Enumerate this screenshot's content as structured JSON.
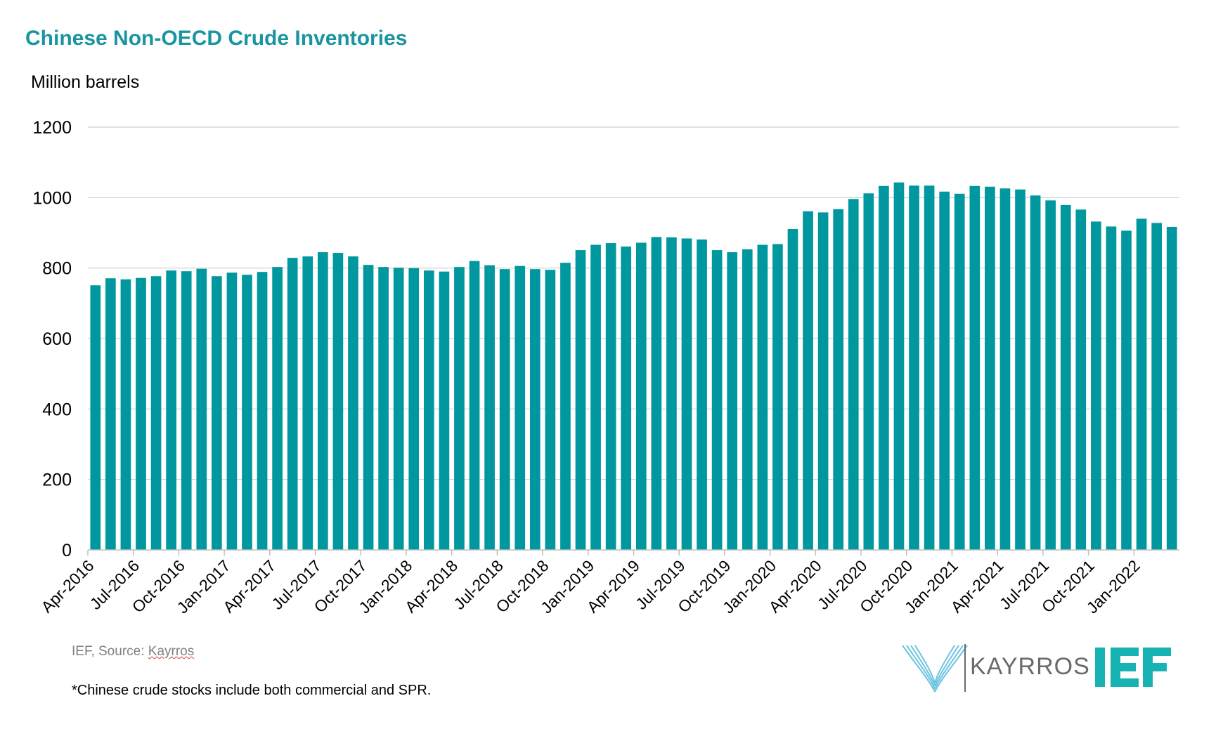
{
  "chart_data": {
    "type": "bar",
    "title": "Chinese Non-OECD Crude Inventories",
    "ylabel": "Million barrels",
    "ylim": [
      0,
      1200
    ],
    "yticks": [
      0,
      200,
      400,
      600,
      800,
      1000,
      1200
    ],
    "grid": true,
    "categories": [
      "Apr-2016",
      "May-2016",
      "Jun-2016",
      "Jul-2016",
      "Aug-2016",
      "Sep-2016",
      "Oct-2016",
      "Nov-2016",
      "Dec-2016",
      "Jan-2017",
      "Feb-2017",
      "Mar-2017",
      "Apr-2017",
      "May-2017",
      "Jun-2017",
      "Jul-2017",
      "Aug-2017",
      "Sep-2017",
      "Oct-2017",
      "Nov-2017",
      "Dec-2017",
      "Jan-2018",
      "Feb-2018",
      "Mar-2018",
      "Apr-2018",
      "May-2018",
      "Jun-2018",
      "Jul-2018",
      "Aug-2018",
      "Sep-2018",
      "Oct-2018",
      "Nov-2018",
      "Dec-2018",
      "Jan-2019",
      "Feb-2019",
      "Mar-2019",
      "Apr-2019",
      "May-2019",
      "Jun-2019",
      "Jul-2019",
      "Aug-2019",
      "Sep-2019",
      "Oct-2019",
      "Nov-2019",
      "Dec-2019",
      "Jan-2020",
      "Feb-2020",
      "Mar-2020",
      "Apr-2020",
      "May-2020",
      "Jun-2020",
      "Jul-2020",
      "Aug-2020",
      "Sep-2020",
      "Oct-2020",
      "Nov-2020",
      "Dec-2020",
      "Jan-2021",
      "Feb-2021",
      "Mar-2021",
      "Apr-2021",
      "May-2021",
      "Jun-2021",
      "Jul-2021",
      "Aug-2021",
      "Sep-2021",
      "Oct-2021",
      "Nov-2021",
      "Dec-2021",
      "Jan-2022",
      "Feb-2022",
      "Mar-2022"
    ],
    "xtick_labels": [
      "Apr-2016",
      "Jul-2016",
      "Oct-2016",
      "Jan-2017",
      "Apr-2017",
      "Jul-2017",
      "Oct-2017",
      "Jan-2018",
      "Apr-2018",
      "Jul-2018",
      "Oct-2018",
      "Jan-2019",
      "Apr-2019",
      "Jul-2019",
      "Oct-2019",
      "Jan-2020",
      "Apr-2020",
      "Jul-2020",
      "Oct-2020",
      "Jan-2021",
      "Apr-2021",
      "Jul-2021",
      "Oct-2021",
      "Jan-2022"
    ],
    "series": [
      {
        "color": "#00989e",
        "values": [
          751,
          771,
          768,
          772,
          777,
          793,
          791,
          798,
          777,
          787,
          781,
          789,
          803,
          829,
          833,
          845,
          843,
          833,
          809,
          803,
          801,
          800,
          793,
          790,
          803,
          820,
          808,
          797,
          806,
          797,
          795,
          815,
          851,
          866,
          871,
          861,
          872,
          888,
          887,
          884,
          881,
          851,
          845,
          853,
          866,
          868,
          911,
          961,
          958,
          967,
          996,
          1012,
          1033,
          1043,
          1034,
          1034,
          1017,
          1011,
          1033,
          1031,
          1026,
          1023,
          1006,
          992,
          979,
          966,
          932,
          918,
          906,
          940,
          928,
          917
        ]
      }
    ]
  },
  "footer": {
    "source_prefix": "IEF, Source: ",
    "source_name": "Kayrros",
    "note": "*Chinese crude stocks include both commercial and SPR."
  },
  "logos": {
    "kayrros_text": "KAYRROS",
    "ief_text": "IEF",
    "kayrros_color": "#6cc4e0",
    "ief_color": "#17b3b3"
  }
}
